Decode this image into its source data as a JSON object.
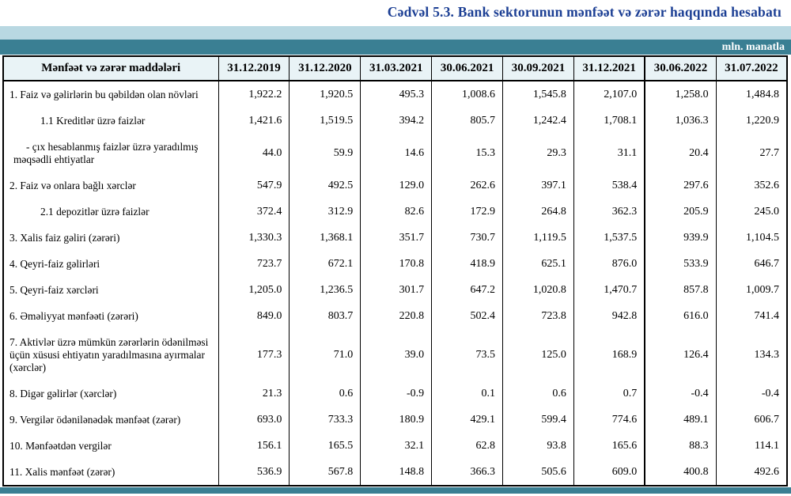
{
  "title": "Cədvəl 5.3. Bank sektorunun mənfəət və zərər haqqında hesabatı",
  "unit_label": "mln. manatla",
  "colors": {
    "title_text": "#1c3f94",
    "bar_light": "#b9d8e2",
    "bar_teal": "#3a7f93",
    "header_bg": "#e9f3f6",
    "border": "#000000"
  },
  "table": {
    "header_label": "Mənfəət və zərər maddələri",
    "columns": [
      "31.12.2019",
      "31.12.2020",
      "31.03.2021",
      "30.06.2021",
      "30.09.2021",
      "31.12.2021",
      "30.06.2022",
      "31.07.2022"
    ],
    "rows": [
      {
        "label": "1. Faiz və gəlirlərin bu qəbildən olan növləri",
        "indent": "none",
        "values": [
          "1,922.2",
          "1,920.5",
          "495.3",
          "1,008.6",
          "1,545.8",
          "2,107.0",
          "1,258.0",
          "1,484.8"
        ]
      },
      {
        "label": "1.1 Kreditlər üzrə faizlər",
        "indent": "sub",
        "values": [
          "1,421.6",
          "1,519.5",
          "394.2",
          "805.7",
          "1,242.4",
          "1,708.1",
          "1,036.3",
          "1,220.9"
        ]
      },
      {
        "label": "-  çıx hesablanmış faizlər üzrə yaradılmış məqsədli ehtiyatlar",
        "indent": "dash",
        "values": [
          "44.0",
          "59.9",
          "14.6",
          "15.3",
          "29.3",
          "31.1",
          "20.4",
          "27.7"
        ]
      },
      {
        "label": "2. Faiz və onlara bağlı xərclər",
        "indent": "none",
        "values": [
          "547.9",
          "492.5",
          "129.0",
          "262.6",
          "397.1",
          "538.4",
          "297.6",
          "352.6"
        ]
      },
      {
        "label": "2.1 depozitlər üzrə faizlər",
        "indent": "sub",
        "values": [
          "372.4",
          "312.9",
          "82.6",
          "172.9",
          "264.8",
          "362.3",
          "205.9",
          "245.0"
        ]
      },
      {
        "label": "3. Xalis faiz gəliri (zərəri)",
        "indent": "none",
        "values": [
          "1,330.3",
          "1,368.1",
          "351.7",
          "730.7",
          "1,119.5",
          "1,537.5",
          "939.9",
          "1,104.5"
        ]
      },
      {
        "label": "4. Qeyri-faiz gəlirləri",
        "indent": "none",
        "values": [
          "723.7",
          "672.1",
          "170.8",
          "418.9",
          "625.1",
          "876.0",
          "533.9",
          "646.7"
        ]
      },
      {
        "label": "5. Qeyri-faiz xərcləri",
        "indent": "none",
        "values": [
          "1,205.0",
          "1,236.5",
          "301.7",
          "647.2",
          "1,020.8",
          "1,470.7",
          "857.8",
          "1,009.7"
        ]
      },
      {
        "label": "6. Əməliyyat mənfəəti (zərəri)",
        "indent": "none",
        "values": [
          "849.0",
          "803.7",
          "220.8",
          "502.4",
          "723.8",
          "942.8",
          "616.0",
          "741.4"
        ]
      },
      {
        "label": "7. Aktivlər üzrə mümkün zərərlərin ödənilməsi üçün xüsusi ehtiyatın yaradılmasına ayırmalar (xərclər)",
        "indent": "none",
        "values": [
          "177.3",
          "71.0",
          "39.0",
          "73.5",
          "125.0",
          "168.9",
          "126.4",
          "134.3"
        ]
      },
      {
        "label": "8. Digər gəlirlər (xərclər)",
        "indent": "none",
        "values": [
          "21.3",
          "0.6",
          "-0.9",
          "0.1",
          "0.6",
          "0.7",
          "-0.4",
          "-0.4"
        ]
      },
      {
        "label": "9. Vergilər ödənilənədək mənfəət (zərər)",
        "indent": "none",
        "values": [
          "693.0",
          "733.3",
          "180.9",
          "429.1",
          "599.4",
          "774.6",
          "489.1",
          "606.7"
        ]
      },
      {
        "label": "10. Mənfəətdən vergilər",
        "indent": "none",
        "values": [
          "156.1",
          "165.5",
          "32.1",
          "62.8",
          "93.8",
          "165.6",
          "88.3",
          "114.1"
        ]
      },
      {
        "label": "11. Xalis mənfəət (zərər)",
        "indent": "none",
        "values": [
          "536.9",
          "567.8",
          "148.8",
          "366.3",
          "505.6",
          "609.0",
          "400.8",
          "492.6"
        ]
      }
    ]
  }
}
